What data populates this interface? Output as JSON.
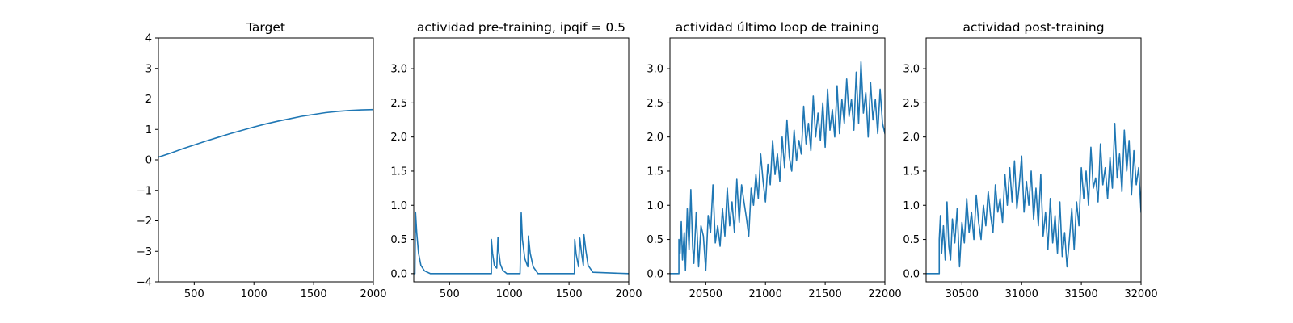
{
  "chart_data": [
    {
      "type": "line",
      "title": "Target",
      "xlim": [
        200,
        2000
      ],
      "ylim": [
        -4,
        4
      ],
      "xticks": [
        500,
        1000,
        1500,
        2000
      ],
      "yticks": [
        -4,
        -3,
        -2,
        -1,
        0,
        1,
        2,
        3,
        4
      ],
      "xtick_labels": [
        "500",
        "1000",
        "1500",
        "2000"
      ],
      "ytick_labels": [
        "−4",
        "−3",
        "−2",
        "−1",
        "0",
        "1",
        "2",
        "3",
        "4"
      ],
      "series": [
        {
          "color": "#1f77b4",
          "x": [
            200,
            300,
            400,
            500,
            600,
            700,
            800,
            900,
            1000,
            1100,
            1200,
            1300,
            1400,
            1500,
            1600,
            1700,
            1800,
            1900,
            2000
          ],
          "y": [
            0.09,
            0.22,
            0.36,
            0.49,
            0.62,
            0.74,
            0.86,
            0.97,
            1.08,
            1.18,
            1.27,
            1.35,
            1.43,
            1.49,
            1.55,
            1.59,
            1.62,
            1.64,
            1.65
          ]
        }
      ]
    },
    {
      "type": "line",
      "title": "actividad pre-training, ipqif = 0.5",
      "xlim": [
        200,
        2000
      ],
      "ylim": [
        -0.12,
        3.45
      ],
      "xticks": [
        500,
        1000,
        1500,
        2000
      ],
      "yticks": [
        0,
        0.5,
        1.0,
        1.5,
        2.0,
        2.5,
        3.0
      ],
      "xtick_labels": [
        "500",
        "1000",
        "1500",
        "2000"
      ],
      "ytick_labels": [
        "0.0",
        "0.5",
        "1.0",
        "1.5",
        "2.0",
        "2.5",
        "3.0"
      ],
      "series": [
        {
          "color": "#1f77b4",
          "x": [
            200,
            210,
            215,
            225,
            240,
            260,
            290,
            340,
            850,
            850,
            860,
            875,
            895,
            905,
            910,
            925,
            945,
            980,
            1090,
            1100,
            1110,
            1130,
            1155,
            1160,
            1175,
            1200,
            1240,
            1545,
            1548,
            1560,
            1580,
            1590,
            1605,
            1620,
            1625,
            1640,
            1660,
            1700,
            2000
          ],
          "y": [
            0,
            0,
            0.9,
            0.6,
            0.3,
            0.12,
            0.04,
            0,
            0,
            0.5,
            0.3,
            0.12,
            0.08,
            0.53,
            0.35,
            0.14,
            0.05,
            0,
            0,
            0.89,
            0.5,
            0.22,
            0.1,
            0.55,
            0.3,
            0.1,
            0,
            0,
            0.5,
            0.28,
            0.1,
            0.52,
            0.3,
            0.12,
            0.57,
            0.35,
            0.12,
            0.02,
            0
          ]
        }
      ]
    },
    {
      "type": "line",
      "title": "actividad último loop de training",
      "xlim": [
        20200,
        22000
      ],
      "ylim": [
        -0.12,
        3.45
      ],
      "xticks": [
        20500,
        21000,
        21500,
        22000
      ],
      "yticks": [
        0,
        0.5,
        1.0,
        1.5,
        2.0,
        2.5,
        3.0
      ],
      "xtick_labels": [
        "20500",
        "21000",
        "21500",
        "22000"
      ],
      "ytick_labels": [
        "0.0",
        "0.5",
        "1.0",
        "1.5",
        "2.0",
        "2.5",
        "3.0"
      ],
      "series": [
        {
          "color": "#1f77b4",
          "x": [
            20200,
            20275,
            20275,
            20285,
            20295,
            20305,
            20320,
            20330,
            20345,
            20360,
            20375,
            20390,
            20400,
            20420,
            20440,
            20460,
            20480,
            20500,
            20520,
            20540,
            20560,
            20580,
            20600,
            20620,
            20640,
            20660,
            20680,
            20700,
            20720,
            20740,
            20760,
            20780,
            20800,
            20820,
            20840,
            20860,
            20880,
            20900,
            20920,
            20940,
            20960,
            20980,
            21000,
            21020,
            21040,
            21060,
            21080,
            21100,
            21120,
            21140,
            21160,
            21180,
            21200,
            21220,
            21240,
            21260,
            21280,
            21300,
            21320,
            21340,
            21360,
            21380,
            21400,
            21420,
            21440,
            21460,
            21480,
            21500,
            21520,
            21540,
            21560,
            21580,
            21600,
            21620,
            21640,
            21660,
            21680,
            21700,
            21720,
            21740,
            21760,
            21780,
            21800,
            21820,
            21840,
            21860,
            21880,
            21900,
            21920,
            21940,
            21960,
            21980,
            22000
          ],
          "y": [
            0,
            0,
            0.5,
            0.3,
            0.76,
            0.2,
            0.6,
            0.05,
            0.95,
            0.35,
            1.23,
            0.4,
            0.15,
            0.9,
            0.1,
            0.7,
            0.55,
            0.05,
            0.85,
            0.6,
            1.3,
            0.45,
            0.7,
            0.4,
            0.95,
            0.55,
            1.25,
            0.7,
            1.05,
            0.6,
            1.38,
            0.75,
            1.3,
            1.05,
            0.82,
            0.55,
            1.25,
            1.0,
            1.45,
            1.1,
            1.75,
            1.35,
            1.05,
            1.6,
            1.3,
            1.95,
            1.45,
            1.75,
            1.35,
            2.0,
            1.55,
            2.25,
            1.7,
            1.5,
            2.1,
            1.65,
            1.95,
            1.75,
            2.45,
            1.9,
            2.2,
            1.8,
            2.6,
            2.0,
            2.35,
            1.95,
            2.5,
            1.85,
            2.7,
            2.1,
            2.4,
            2.0,
            2.75,
            2.05,
            2.55,
            2.2,
            2.85,
            2.3,
            2.55,
            2.1,
            2.95,
            2.2,
            3.1,
            2.35,
            2.65,
            2.0,
            2.8,
            2.25,
            2.55,
            2.05,
            2.7,
            2.2,
            2.05
          ]
        }
      ]
    },
    {
      "type": "line",
      "title": "actividad post-training",
      "xlim": [
        30200,
        32000
      ],
      "ylim": [
        -0.12,
        3.45
      ],
      "xticks": [
        30500,
        31000,
        31500,
        32000
      ],
      "yticks": [
        0,
        0.5,
        1.0,
        1.5,
        2.0,
        2.5,
        3.0
      ],
      "xtick_labels": [
        "30500",
        "31000",
        "31500",
        "32000"
      ],
      "ytick_labels": [
        "0.0",
        "0.5",
        "1.0",
        "1.5",
        "2.0",
        "2.5",
        "3.0"
      ],
      "series": [
        {
          "color": "#1f77b4",
          "x": [
            30200,
            30310,
            30310,
            30320,
            30330,
            30345,
            30360,
            30375,
            30390,
            30405,
            30420,
            30440,
            30460,
            30480,
            30500,
            30520,
            30540,
            30560,
            30580,
            30600,
            30620,
            30640,
            30660,
            30680,
            30700,
            30720,
            30740,
            30760,
            30780,
            30800,
            30820,
            30840,
            30860,
            30880,
            30900,
            30920,
            30940,
            30960,
            30980,
            31000,
            31020,
            31040,
            31060,
            31080,
            31100,
            31120,
            31140,
            31160,
            31180,
            31200,
            31220,
            31240,
            31260,
            31280,
            31300,
            31320,
            31340,
            31360,
            31380,
            31400,
            31420,
            31440,
            31460,
            31480,
            31500,
            31520,
            31540,
            31560,
            31580,
            31600,
            31620,
            31640,
            31660,
            31680,
            31700,
            31720,
            31740,
            31760,
            31780,
            31800,
            31820,
            31840,
            31860,
            31880,
            31900,
            31920,
            31940,
            31960,
            31980,
            32000
          ],
          "y": [
            0,
            0,
            0.5,
            0.85,
            0.3,
            0.7,
            0.2,
            1.05,
            0.4,
            0.2,
            0.8,
            0.45,
            0.95,
            0.1,
            0.75,
            0.45,
            1.1,
            0.6,
            0.9,
            0.5,
            1.15,
            0.75,
            0.5,
            1.0,
            0.7,
            1.2,
            0.85,
            0.6,
            1.3,
            0.9,
            1.1,
            0.75,
            1.45,
            1.0,
            1.55,
            1.05,
            1.65,
            0.95,
            1.3,
            1.72,
            0.9,
            1.35,
            1.0,
            1.5,
            0.8,
            1.25,
            0.7,
            1.45,
            0.55,
            0.9,
            0.35,
            1.1,
            0.45,
            0.85,
            0.3,
            1.05,
            0.25,
            0.6,
            0.1,
            0.5,
            0.95,
            0.35,
            1.05,
            0.7,
            1.55,
            1.1,
            1.5,
            1.0,
            1.85,
            1.25,
            1.4,
            1.05,
            1.9,
            1.3,
            1.55,
            1.1,
            1.7,
            1.25,
            2.2,
            1.4,
            1.75,
            1.2,
            2.1,
            1.5,
            1.95,
            1.15,
            1.8,
            1.3,
            1.55,
            0.9
          ]
        }
      ]
    }
  ]
}
